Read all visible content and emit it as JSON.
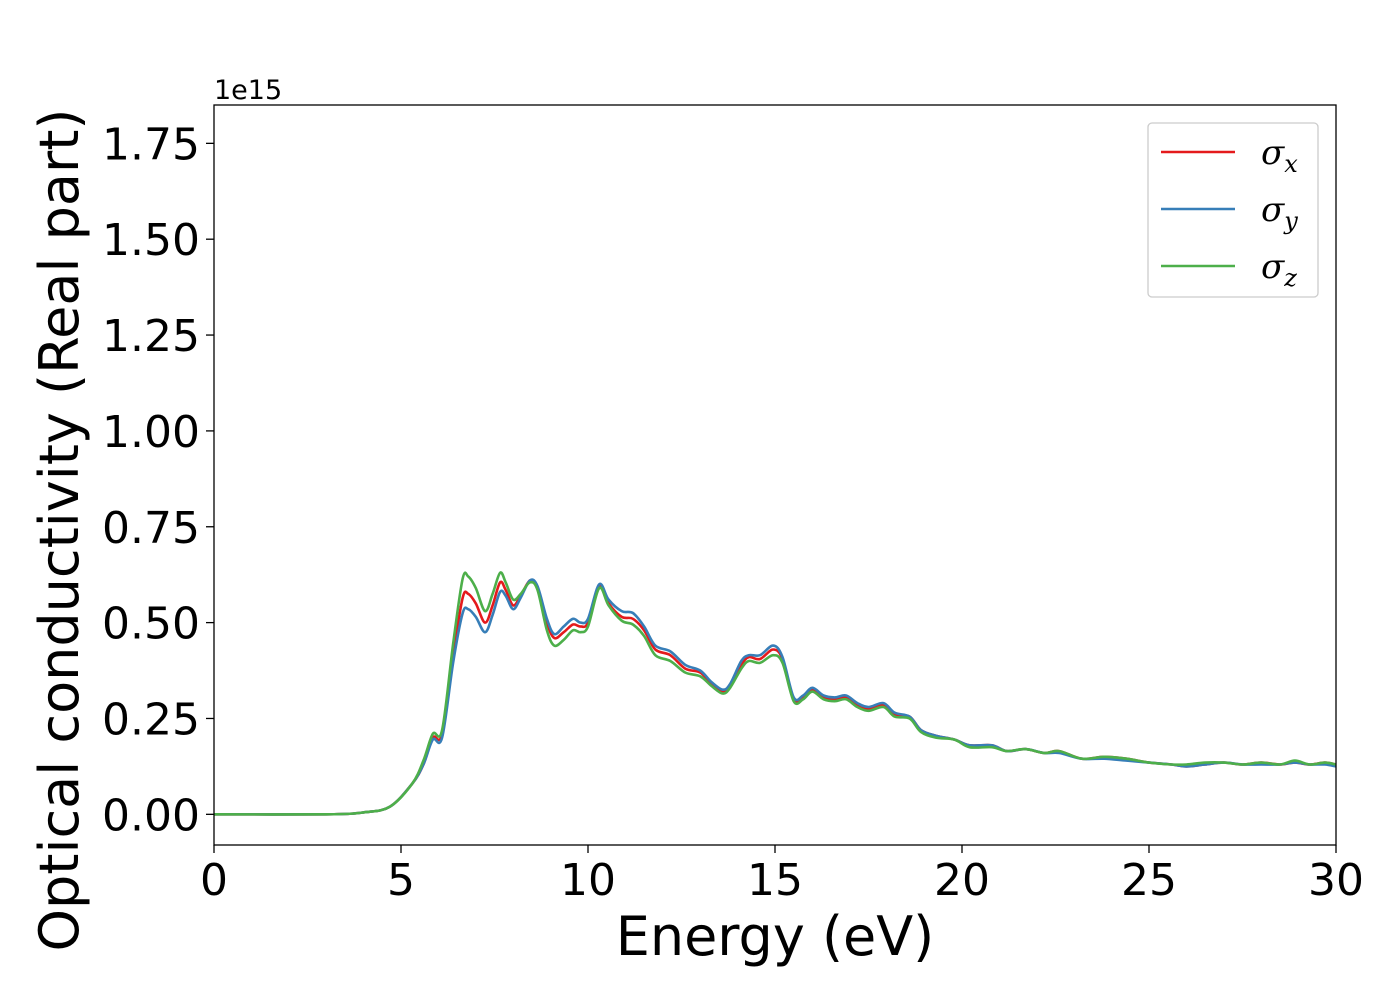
{
  "chart_data": {
    "type": "line",
    "xlabel": "Energy (eV)",
    "ylabel": "Optical conductivity (Real part)",
    "y_offset_text": "1e15",
    "xlim": [
      0,
      30
    ],
    "ylim": [
      -0.08,
      1.85
    ],
    "y_unit_scale": 1000000000000000.0,
    "x_ticks": [
      0,
      5,
      10,
      15,
      20,
      25,
      30
    ],
    "x_tick_labels": [
      "0",
      "5",
      "10",
      "15",
      "20",
      "25",
      "30"
    ],
    "y_ticks": [
      0.0,
      0.25,
      0.5,
      0.75,
      1.0,
      1.25,
      1.5,
      1.75
    ],
    "y_tick_labels": [
      "0.00",
      "0.25",
      "0.50",
      "0.75",
      "1.00",
      "1.25",
      "1.50",
      "1.75"
    ],
    "grid": false,
    "legend_position": "top-right",
    "series": [
      {
        "name": "σx",
        "symbol": "σ",
        "subscript": "x",
        "color": "#e41a1c",
        "points": [
          [
            0,
            0
          ],
          [
            3,
            0.0
          ],
          [
            4,
            0.005
          ],
          [
            4.7,
            0.02
          ],
          [
            5.3,
            0.08
          ],
          [
            5.6,
            0.13
          ],
          [
            5.85,
            0.2
          ],
          [
            6.1,
            0.21
          ],
          [
            6.4,
            0.42
          ],
          [
            6.65,
            0.565
          ],
          [
            6.8,
            0.575
          ],
          [
            7.0,
            0.55
          ],
          [
            7.25,
            0.5
          ],
          [
            7.45,
            0.545
          ],
          [
            7.65,
            0.605
          ],
          [
            7.8,
            0.585
          ],
          [
            8.0,
            0.545
          ],
          [
            8.2,
            0.57
          ],
          [
            8.45,
            0.61
          ],
          [
            8.65,
            0.59
          ],
          [
            8.9,
            0.5
          ],
          [
            9.1,
            0.46
          ],
          [
            9.35,
            0.475
          ],
          [
            9.6,
            0.495
          ],
          [
            9.8,
            0.49
          ],
          [
            10.0,
            0.5
          ],
          [
            10.3,
            0.595
          ],
          [
            10.55,
            0.55
          ],
          [
            10.9,
            0.515
          ],
          [
            11.2,
            0.51
          ],
          [
            11.5,
            0.48
          ],
          [
            11.8,
            0.43
          ],
          [
            12.2,
            0.415
          ],
          [
            12.6,
            0.38
          ],
          [
            13.0,
            0.37
          ],
          [
            13.3,
            0.34
          ],
          [
            13.6,
            0.32
          ],
          [
            13.8,
            0.335
          ],
          [
            14.1,
            0.39
          ],
          [
            14.3,
            0.41
          ],
          [
            14.6,
            0.405
          ],
          [
            14.95,
            0.43
          ],
          [
            15.2,
            0.405
          ],
          [
            15.5,
            0.3
          ],
          [
            15.75,
            0.305
          ],
          [
            16.0,
            0.325
          ],
          [
            16.3,
            0.305
          ],
          [
            16.6,
            0.3
          ],
          [
            16.9,
            0.305
          ],
          [
            17.2,
            0.285
          ],
          [
            17.5,
            0.275
          ],
          [
            17.9,
            0.285
          ],
          [
            18.2,
            0.26
          ],
          [
            18.6,
            0.255
          ],
          [
            18.9,
            0.22
          ],
          [
            19.3,
            0.205
          ],
          [
            19.8,
            0.195
          ],
          [
            20.2,
            0.18
          ],
          [
            20.8,
            0.18
          ],
          [
            21.2,
            0.165
          ],
          [
            21.7,
            0.17
          ],
          [
            22.2,
            0.16
          ],
          [
            22.6,
            0.165
          ],
          [
            23.2,
            0.145
          ],
          [
            23.8,
            0.15
          ],
          [
            24.4,
            0.145
          ],
          [
            25.0,
            0.135
          ],
          [
            25.6,
            0.13
          ],
          [
            26.0,
            0.125
          ],
          [
            26.5,
            0.13
          ],
          [
            27.0,
            0.135
          ],
          [
            27.5,
            0.13
          ],
          [
            28.0,
            0.135
          ],
          [
            28.5,
            0.13
          ],
          [
            28.9,
            0.135
          ],
          [
            29.3,
            0.13
          ],
          [
            29.7,
            0.135
          ],
          [
            30,
            0.13
          ]
        ]
      },
      {
        "name": "σy",
        "symbol": "σ",
        "subscript": "y",
        "color": "#377eb8",
        "points": [
          [
            0,
            0
          ],
          [
            3,
            0.0
          ],
          [
            4,
            0.005
          ],
          [
            4.7,
            0.02
          ],
          [
            5.3,
            0.08
          ],
          [
            5.6,
            0.13
          ],
          [
            5.85,
            0.195
          ],
          [
            6.1,
            0.2
          ],
          [
            6.4,
            0.4
          ],
          [
            6.65,
            0.525
          ],
          [
            6.8,
            0.535
          ],
          [
            7.0,
            0.515
          ],
          [
            7.25,
            0.475
          ],
          [
            7.45,
            0.52
          ],
          [
            7.65,
            0.58
          ],
          [
            7.8,
            0.57
          ],
          [
            8.0,
            0.535
          ],
          [
            8.2,
            0.565
          ],
          [
            8.45,
            0.61
          ],
          [
            8.65,
            0.595
          ],
          [
            8.9,
            0.51
          ],
          [
            9.1,
            0.47
          ],
          [
            9.35,
            0.49
          ],
          [
            9.6,
            0.51
          ],
          [
            9.8,
            0.5
          ],
          [
            10.0,
            0.51
          ],
          [
            10.3,
            0.6
          ],
          [
            10.55,
            0.56
          ],
          [
            10.9,
            0.53
          ],
          [
            11.2,
            0.525
          ],
          [
            11.5,
            0.49
          ],
          [
            11.8,
            0.44
          ],
          [
            12.2,
            0.425
          ],
          [
            12.6,
            0.39
          ],
          [
            13.0,
            0.375
          ],
          [
            13.3,
            0.345
          ],
          [
            13.6,
            0.325
          ],
          [
            13.8,
            0.34
          ],
          [
            14.1,
            0.4
          ],
          [
            14.3,
            0.415
          ],
          [
            14.6,
            0.415
          ],
          [
            14.95,
            0.44
          ],
          [
            15.2,
            0.41
          ],
          [
            15.5,
            0.305
          ],
          [
            15.75,
            0.31
          ],
          [
            16.0,
            0.33
          ],
          [
            16.3,
            0.31
          ],
          [
            16.6,
            0.305
          ],
          [
            16.9,
            0.31
          ],
          [
            17.2,
            0.29
          ],
          [
            17.5,
            0.28
          ],
          [
            17.9,
            0.29
          ],
          [
            18.2,
            0.265
          ],
          [
            18.6,
            0.255
          ],
          [
            18.9,
            0.22
          ],
          [
            19.3,
            0.205
          ],
          [
            19.8,
            0.195
          ],
          [
            20.2,
            0.18
          ],
          [
            20.8,
            0.18
          ],
          [
            21.2,
            0.165
          ],
          [
            21.7,
            0.17
          ],
          [
            22.2,
            0.16
          ],
          [
            22.6,
            0.16
          ],
          [
            23.2,
            0.145
          ],
          [
            23.8,
            0.145
          ],
          [
            24.4,
            0.14
          ],
          [
            25.0,
            0.135
          ],
          [
            25.6,
            0.13
          ],
          [
            26.0,
            0.125
          ],
          [
            26.5,
            0.13
          ],
          [
            27.0,
            0.135
          ],
          [
            27.5,
            0.13
          ],
          [
            28.0,
            0.13
          ],
          [
            28.5,
            0.13
          ],
          [
            28.9,
            0.135
          ],
          [
            29.3,
            0.13
          ],
          [
            29.7,
            0.13
          ],
          [
            30,
            0.125
          ]
        ]
      },
      {
        "name": "σz",
        "symbol": "σ",
        "subscript": "z",
        "color": "#4daf4a",
        "points": [
          [
            0,
            0
          ],
          [
            3,
            0.0
          ],
          [
            4,
            0.005
          ],
          [
            4.7,
            0.02
          ],
          [
            5.3,
            0.08
          ],
          [
            5.6,
            0.14
          ],
          [
            5.85,
            0.21
          ],
          [
            6.1,
            0.22
          ],
          [
            6.4,
            0.45
          ],
          [
            6.65,
            0.615
          ],
          [
            6.8,
            0.62
          ],
          [
            7.0,
            0.59
          ],
          [
            7.25,
            0.53
          ],
          [
            7.45,
            0.575
          ],
          [
            7.65,
            0.63
          ],
          [
            7.8,
            0.605
          ],
          [
            8.0,
            0.56
          ],
          [
            8.2,
            0.575
          ],
          [
            8.45,
            0.605
          ],
          [
            8.65,
            0.585
          ],
          [
            8.9,
            0.48
          ],
          [
            9.1,
            0.44
          ],
          [
            9.35,
            0.455
          ],
          [
            9.6,
            0.48
          ],
          [
            9.8,
            0.475
          ],
          [
            10.0,
            0.49
          ],
          [
            10.3,
            0.59
          ],
          [
            10.55,
            0.545
          ],
          [
            10.9,
            0.505
          ],
          [
            11.2,
            0.495
          ],
          [
            11.5,
            0.465
          ],
          [
            11.8,
            0.415
          ],
          [
            12.2,
            0.4
          ],
          [
            12.6,
            0.37
          ],
          [
            13.0,
            0.36
          ],
          [
            13.3,
            0.335
          ],
          [
            13.6,
            0.315
          ],
          [
            13.8,
            0.33
          ],
          [
            14.1,
            0.38
          ],
          [
            14.3,
            0.4
          ],
          [
            14.6,
            0.395
          ],
          [
            14.95,
            0.415
          ],
          [
            15.2,
            0.395
          ],
          [
            15.5,
            0.295
          ],
          [
            15.75,
            0.3
          ],
          [
            16.0,
            0.32
          ],
          [
            16.3,
            0.3
          ],
          [
            16.6,
            0.295
          ],
          [
            16.9,
            0.3
          ],
          [
            17.2,
            0.28
          ],
          [
            17.5,
            0.27
          ],
          [
            17.9,
            0.28
          ],
          [
            18.2,
            0.255
          ],
          [
            18.6,
            0.25
          ],
          [
            18.9,
            0.215
          ],
          [
            19.3,
            0.2
          ],
          [
            19.8,
            0.195
          ],
          [
            20.2,
            0.175
          ],
          [
            20.8,
            0.175
          ],
          [
            21.2,
            0.165
          ],
          [
            21.7,
            0.17
          ],
          [
            22.2,
            0.16
          ],
          [
            22.6,
            0.165
          ],
          [
            23.2,
            0.145
          ],
          [
            23.8,
            0.15
          ],
          [
            24.4,
            0.145
          ],
          [
            25.0,
            0.135
          ],
          [
            25.6,
            0.13
          ],
          [
            26.0,
            0.13
          ],
          [
            26.5,
            0.135
          ],
          [
            27.0,
            0.135
          ],
          [
            27.5,
            0.13
          ],
          [
            28.0,
            0.135
          ],
          [
            28.5,
            0.13
          ],
          [
            28.9,
            0.14
          ],
          [
            29.3,
            0.13
          ],
          [
            29.7,
            0.135
          ],
          [
            30,
            0.13
          ]
        ]
      }
    ]
  }
}
